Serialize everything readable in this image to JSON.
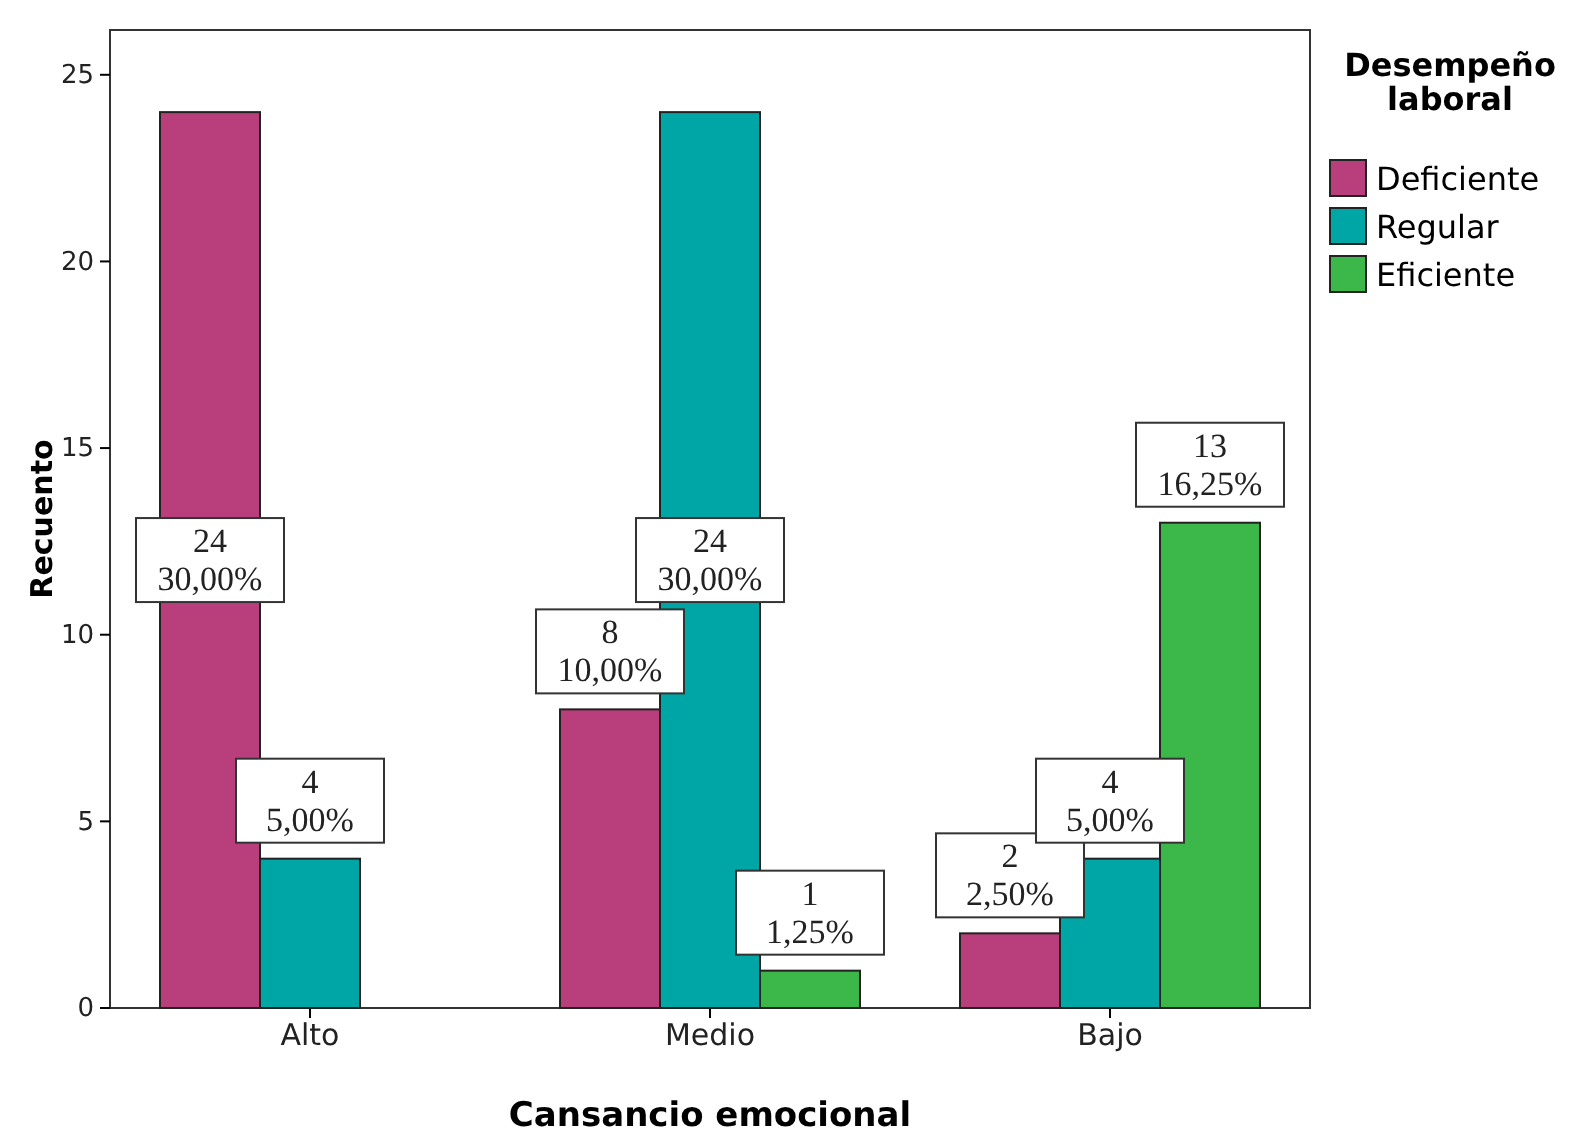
{
  "chart_data": {
    "type": "bar",
    "xlabel": "Cansancio emocional",
    "ylabel": "Recuento",
    "legend_title": "Desempeño laboral",
    "legend": "right",
    "categories": [
      "Alto",
      "Medio",
      "Bajo"
    ],
    "ylim": [
      0,
      26.2
    ],
    "yticks": [
      0,
      5,
      10,
      15,
      20,
      25
    ],
    "grid": false,
    "series": [
      {
        "name": "Deficiente",
        "color": "#b93f7c",
        "values": [
          24,
          8,
          2
        ],
        "value_labels": [
          "24\n30,00%",
          "8\n10,00%",
          "2\n2,50%"
        ]
      },
      {
        "name": "Regular",
        "color": "#00a5a5",
        "values": [
          4,
          24,
          4
        ],
        "value_labels": [
          "4\n5,00%",
          "24\n30,00%",
          "4\n5,00%"
        ]
      },
      {
        "name": "Eficiente",
        "color": "#3cb84a",
        "values": [
          null,
          1,
          13
        ],
        "value_labels": [
          null,
          "1\n1,25%",
          "13\n16,25%"
        ]
      }
    ]
  }
}
